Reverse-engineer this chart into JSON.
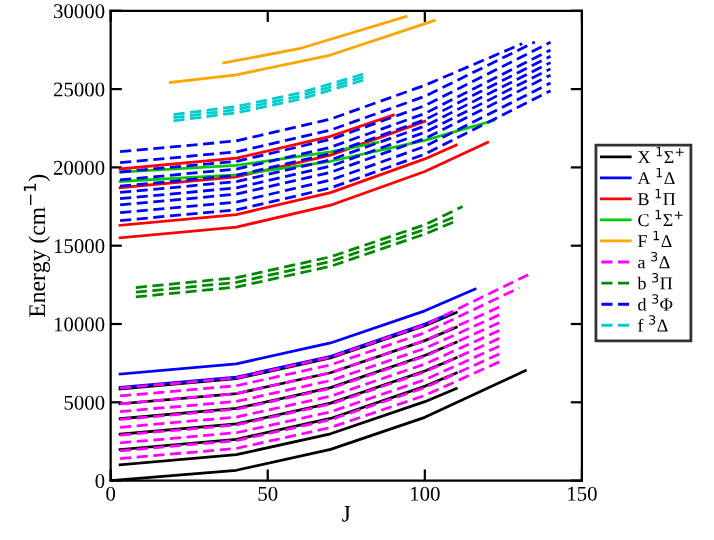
{
  "chart_data": {
    "type": "line",
    "xlabel": "J",
    "ylabel": "Energy (cm$^{−1}$)",
    "xlim": [
      0,
      150
    ],
    "ylim": [
      0,
      30000
    ],
    "xticks": [
      0,
      50,
      100,
      150
    ],
    "yticks": [
      0,
      5000,
      10000,
      15000,
      20000,
      25000,
      30000
    ],
    "grid": false,
    "legend": "right",
    "marker": "none",
    "series": [
      {
        "name": "X $^{1}$Σ$^{+}$",
        "color": "#000000",
        "line_style": "solid",
        "x": [
          0,
          40,
          70,
          100,
          132
        ],
        "values": [
          0,
          660,
          1990,
          4040,
          7020
        ]
      },
      {
        "color": "#000000",
        "line_style": "solid",
        "x": [
          3,
          40,
          70,
          100,
          110
        ],
        "values": [
          1005,
          1656,
          2988,
          5040,
          5884
        ]
      },
      {
        "color": "#000000",
        "line_style": "solid",
        "x": [
          3,
          40,
          70,
          100,
          110
        ],
        "values": [
          1985,
          2636,
          3968,
          6020,
          6864
        ]
      },
      {
        "color": "#000000",
        "line_style": "solid",
        "x": [
          3,
          40,
          70,
          100,
          110
        ],
        "values": [
          2965,
          3616,
          4948,
          7000,
          7844
        ]
      },
      {
        "color": "#000000",
        "line_style": "solid",
        "x": [
          3,
          40,
          70,
          100,
          110
        ],
        "values": [
          3955,
          4606,
          5938,
          7990,
          8834
        ]
      },
      {
        "color": "#000000",
        "line_style": "solid",
        "x": [
          3,
          40,
          70,
          100,
          110
        ],
        "values": [
          4905,
          5556,
          6888,
          8940,
          9784
        ]
      },
      {
        "color": "#000000",
        "line_style": "solid",
        "x": [
          3,
          40,
          70,
          100,
          110
        ],
        "values": [
          5855,
          6506,
          7838,
          9890,
          10734
        ]
      },
      {
        "name": "A $^{1}$Δ",
        "color": "#0000ff",
        "line_style": "solid",
        "x": [
          3,
          40,
          70,
          100,
          116
        ],
        "values": [
          6805,
          7456,
          8788,
          10840,
          12229
        ]
      },
      {
        "color": "#0000ff",
        "line_style": "solid",
        "x": [
          3,
          40,
          70,
          100,
          108
        ],
        "values": [
          5955,
          6606,
          7938,
          9990,
          10659
        ]
      },
      {
        "name": "B $^{1}$Π",
        "color": "#ff0000",
        "line_style": "solid",
        "x": [
          3,
          40,
          70,
          100,
          120
        ],
        "values": [
          15505,
          16189,
          17587,
          19742,
          21598
        ]
      },
      {
        "color": "#ff0000",
        "line_style": "solid",
        "x": [
          3,
          40,
          70,
          100,
          110
        ],
        "values": [
          16305,
          16989,
          18387,
          20542,
          21428
        ]
      },
      {
        "color": "#ff0000",
        "line_style": "solid",
        "x": [
          3,
          40,
          70,
          100
        ],
        "values": [
          18705,
          19389,
          20787,
          22942
        ]
      },
      {
        "color": "#ff0000",
        "line_style": "solid",
        "x": [
          3,
          40,
          70,
          90
        ],
        "values": [
          19905,
          20589,
          21987,
          23340
        ]
      },
      {
        "name": "C $^{1}$Σ$^{+}$",
        "color": "#00cc00",
        "line_style": "solid",
        "x": [
          3,
          40,
          70,
          100,
          122
        ],
        "values": [
          19103,
          19526,
          20392,
          21726,
          23002
        ]
      },
      {
        "color": "#00cc00",
        "line_style": "solid",
        "x": [
          3,
          40,
          70,
          85
        ],
        "values": [
          19703,
          20126,
          20992,
          21600
        ]
      },
      {
        "name": "F $^{1}$Δ",
        "color": "#ffa500",
        "line_style": "solid",
        "x": [
          19,
          40,
          70,
          103
        ],
        "values": [
          25430,
          25909,
          27174,
          29380
        ]
      },
      {
        "color": "#ffa500",
        "line_style": "solid",
        "x": [
          36,
          60,
          94
        ],
        "values": [
          26670,
          27578,
          29630
        ]
      },
      {
        "name": "a $^{3}$Δ",
        "color": "#ff00ff",
        "line_style": "dashed",
        "x": [
          3,
          40,
          70,
          100,
          125
        ],
        "values": [
          1405,
          2056,
          3388,
          5440,
          7700
        ]
      },
      {
        "color": "#ff00ff",
        "line_style": "dashed",
        "x": [
          3,
          40,
          70,
          100,
          125
        ],
        "values": [
          1905,
          2556,
          3888,
          5940,
          8200
        ]
      },
      {
        "color": "#ff00ff",
        "line_style": "dashed",
        "x": [
          3,
          40,
          70,
          100,
          125
        ],
        "values": [
          2405,
          3056,
          4388,
          6440,
          8700
        ]
      },
      {
        "color": "#ff00ff",
        "line_style": "dashed",
        "x": [
          3,
          40,
          70,
          100,
          125
        ],
        "values": [
          2905,
          3556,
          4888,
          6940,
          9200
        ]
      },
      {
        "color": "#ff00ff",
        "line_style": "dashed",
        "x": [
          3,
          40,
          70,
          100,
          125
        ],
        "values": [
          3405,
          4056,
          5388,
          7440,
          9700
        ]
      },
      {
        "color": "#ff00ff",
        "line_style": "dashed",
        "x": [
          3,
          40,
          70,
          100,
          125
        ],
        "values": [
          3905,
          4556,
          5888,
          7940,
          10200
        ]
      },
      {
        "color": "#ff00ff",
        "line_style": "dashed",
        "x": [
          3,
          40,
          70,
          100,
          125
        ],
        "values": [
          4405,
          5056,
          6388,
          8440,
          10700
        ]
      },
      {
        "color": "#ff00ff",
        "line_style": "dashed",
        "x": [
          3,
          40,
          70,
          100,
          125
        ],
        "values": [
          4905,
          5556,
          6888,
          8940,
          11200
        ]
      },
      {
        "color": "#ff00ff",
        "line_style": "dashed",
        "x": [
          3,
          40,
          70,
          100,
          130
        ],
        "values": [
          5405,
          6056,
          7388,
          9440,
          12300
        ]
      },
      {
        "color": "#ff00ff",
        "line_style": "dashed",
        "x": [
          3,
          40,
          70,
          100,
          134
        ],
        "values": [
          5905,
          6556,
          7888,
          9940,
          13250
        ]
      },
      {
        "name": "b $^{3}$Π",
        "color": "#008800",
        "line_style": "dashed",
        "x": [
          8,
          40,
          70,
          100,
          110
        ],
        "values": [
          11730,
          12356,
          13688,
          15740,
          16584
        ]
      },
      {
        "color": "#008800",
        "line_style": "dashed",
        "x": [
          8,
          40,
          70,
          100,
          110
        ],
        "values": [
          12030,
          12656,
          13988,
          16040,
          16884
        ]
      },
      {
        "color": "#008800",
        "line_style": "dashed",
        "x": [
          8,
          40,
          70,
          100,
          112
        ],
        "values": [
          12330,
          12956,
          14288,
          16340,
          17500
        ]
      },
      {
        "name": "d $^{3}$Φ",
        "color": "#0000ff",
        "line_style": "dashed",
        "x": [
          3,
          40,
          70,
          100,
          140
        ],
        "values": [
          16605,
          17289,
          18687,
          20842,
          24891
        ]
      },
      {
        "color": "#0000ff",
        "line_style": "dashed",
        "x": [
          3,
          40,
          70,
          100,
          140
        ],
        "values": [
          17105,
          17789,
          19187,
          21342,
          25391
        ]
      },
      {
        "color": "#0000ff",
        "line_style": "dashed",
        "x": [
          3,
          40,
          70,
          100,
          140
        ],
        "values": [
          17605,
          18289,
          19687,
          21842,
          25891
        ]
      },
      {
        "color": "#0000ff",
        "line_style": "dashed",
        "x": [
          3,
          40,
          70,
          100,
          140
        ],
        "values": [
          18005,
          18689,
          20087,
          22242,
          26291
        ]
      },
      {
        "color": "#0000ff",
        "line_style": "dashed",
        "x": [
          3,
          40,
          70,
          100,
          140
        ],
        "values": [
          18405,
          19089,
          20487,
          22642,
          26691
        ]
      },
      {
        "color": "#0000ff",
        "line_style": "dashed",
        "x": [
          3,
          40,
          70,
          100,
          140
        ],
        "values": [
          18805,
          19489,
          20887,
          23042,
          27091
        ]
      },
      {
        "color": "#0000ff",
        "line_style": "dashed",
        "x": [
          3,
          40,
          70,
          100,
          140
        ],
        "values": [
          19205,
          19889,
          21287,
          23442,
          27491
        ]
      },
      {
        "color": "#0000ff",
        "line_style": "dashed",
        "x": [
          3,
          40,
          70,
          100,
          140
        ],
        "values": [
          19705,
          20389,
          21787,
          23942,
          27991
        ]
      },
      {
        "color": "#0000ff",
        "line_style": "dashed",
        "x": [
          3,
          40,
          70,
          100,
          135
        ],
        "values": [
          20305,
          20989,
          22387,
          24542,
          28000
        ]
      },
      {
        "color": "#0000ff",
        "line_style": "dashed",
        "x": [
          3,
          40,
          70,
          100,
          131
        ],
        "values": [
          21005,
          21689,
          23087,
          25242,
          27900
        ]
      },
      {
        "name": "f $^{3}$Δ",
        "color": "#00cccc",
        "line_style": "dashed",
        "x": [
          20,
          40,
          60,
          82
        ],
        "values": [
          22976,
          23489,
          24337,
          25659
        ]
      },
      {
        "color": "#00cccc",
        "line_style": "dashed",
        "x": [
          20,
          40,
          60,
          82
        ],
        "values": [
          23176,
          23689,
          24537,
          25859
        ]
      },
      {
        "color": "#00cccc",
        "line_style": "dashed",
        "x": [
          20,
          40,
          60,
          82
        ],
        "values": [
          23376,
          23889,
          24737,
          26059
        ]
      }
    ]
  }
}
